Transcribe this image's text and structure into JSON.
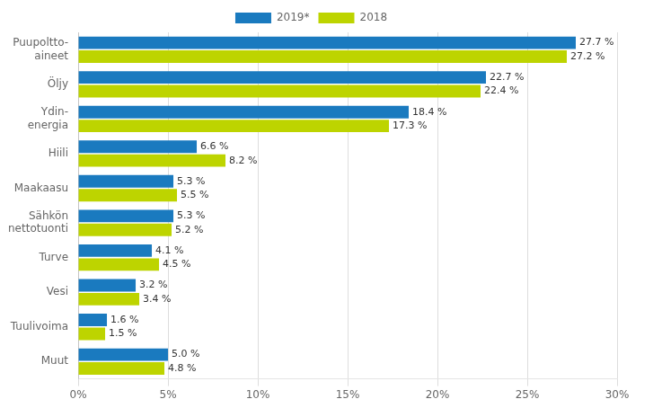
{
  "chart_data": {
    "type": "bar",
    "orientation": "horizontal",
    "categories": [
      "Muut",
      "Tuulivoima",
      "Vesi",
      "Turve",
      "Sähkön\nnettotuonti",
      "Maakaasu",
      "Hiili",
      "Ydin-\nenergia",
      "Öljy",
      "Puupoltto-\naineet"
    ],
    "series": [
      {
        "name": "2019*",
        "color": "#1a7abf",
        "values": [
          5.0,
          1.6,
          3.2,
          4.1,
          5.3,
          5.3,
          6.6,
          18.4,
          22.7,
          27.7
        ],
        "value_labels": [
          "5.0 %",
          "1.6 %",
          "3.2 %",
          "4.1 %",
          "5.3 %",
          "5.3 %",
          "6.6 %",
          "18.4 %",
          "22.7 %",
          "27.7 %"
        ]
      },
      {
        "name": "2018",
        "color": "#bdd400",
        "values": [
          4.8,
          1.5,
          3.4,
          4.5,
          5.2,
          5.5,
          8.2,
          17.3,
          22.4,
          27.2
        ],
        "value_labels": [
          "4.8 %",
          "1.5 %",
          "3.4 %",
          "4.5 %",
          "5.2 %",
          "5.5 %",
          "8.2 %",
          "17.3 %",
          "22.4 %",
          "27.2 %"
        ]
      }
    ],
    "xlim": [
      0,
      30
    ],
    "xticks": [
      {
        "value": 0,
        "label": "0%"
      },
      {
        "value": 5,
        "label": "5%"
      },
      {
        "value": 10,
        "label": "10%"
      },
      {
        "value": 15,
        "label": "15%"
      },
      {
        "value": 20,
        "label": "20%"
      },
      {
        "value": 25,
        "label": "25%"
      },
      {
        "value": 30,
        "label": "30%"
      }
    ],
    "grid": true,
    "legend": "top",
    "data_labels": true
  }
}
